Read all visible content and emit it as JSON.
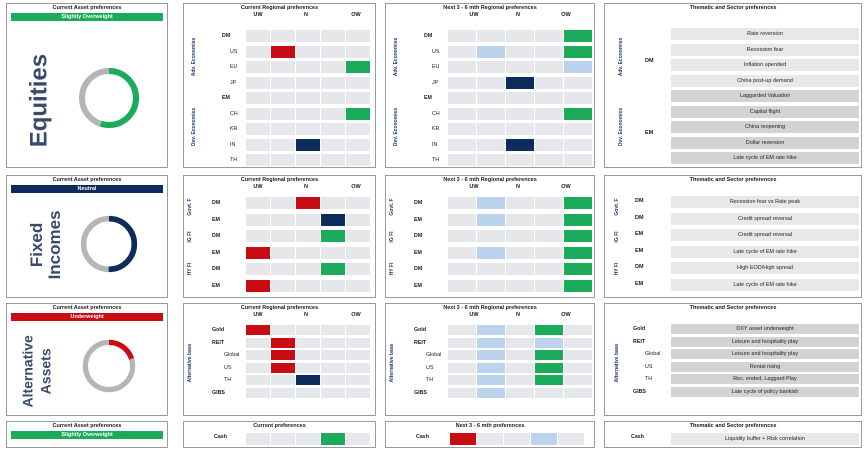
{
  "colors": {
    "ow": "#1bab5b",
    "n": "#0c2d5b",
    "uw": "#c90b14",
    "lb": "#bcd3ee",
    "gray": "#e6e7ea",
    "ringgray": "#b5b5b5"
  },
  "headers": {
    "current": "Current Regional preferences",
    "next": "Next 3 - 6 mth  Regional preferences",
    "next_short": "Next 3 - 6 mth  Regional preferences",
    "thematic": "Thematic and Sector preferences",
    "uw": "UW",
    "n": "N",
    "ow": "OW"
  },
  "equities": {
    "pref_title": "Current Asset preferences",
    "pref_value": "Slightly Overweight",
    "pref_color": "#1bab5b",
    "name": "Equities",
    "ring_fraction": 0.55,
    "ring_color": "#1bab5b",
    "group_labels": [
      "Adv. Economies",
      "Dev. Economies"
    ],
    "rows": [
      {
        "label": "DM",
        "bold": true,
        "cur": "n",
        "next": "ow"
      },
      {
        "label": "US",
        "bold": false,
        "cur": "uw",
        "next": "ow|lbUW"
      },
      {
        "label": "EU",
        "bold": false,
        "cur": "owOW",
        "next": "lbOW|n"
      },
      {
        "label": "JP",
        "bold": false,
        "cur": "n",
        "next": "nUW"
      },
      {
        "label": "EM",
        "bold": true,
        "cur": "n",
        "next": "n"
      },
      {
        "label": "CH",
        "bold": false,
        "cur": "owOW",
        "next": "owOW"
      },
      {
        "label": "KR",
        "bold": false,
        "cur": "n",
        "next": "n"
      },
      {
        "label": "IN",
        "bold": false,
        "cur": "nN",
        "next": "nUW"
      },
      {
        "label": "TH",
        "bold": false,
        "cur": "n",
        "next": "n"
      }
    ],
    "themes_groups": [
      "DM",
      "EM"
    ],
    "themes": [
      {
        "text": "Rate reversion",
        "dark": false
      },
      {
        "text": "Recession fear",
        "dark": false
      },
      {
        "text": "Inflation upended",
        "dark": false
      },
      {
        "text": "China post-up demand",
        "dark": false
      },
      {
        "text": "Laggarded Valuation",
        "dark": true
      },
      {
        "text": "Capital flight",
        "dark": true
      },
      {
        "text": "China reopening",
        "dark": true
      },
      {
        "text": "Dollar reversion",
        "dark": true
      },
      {
        "text": "Late cycle of EM rate hike",
        "dark": true
      }
    ]
  },
  "fixed": {
    "pref_title": "Current Asset preferences",
    "pref_value": "Neutral",
    "pref_color": "#0c2d5b",
    "name_1": "Fixed",
    "name_2": "Incomes",
    "ring_fraction": 0.5,
    "ring_color": "#0c2d5b",
    "group_labels": [
      "Govt. F",
      "IG FI",
      "HY FI"
    ],
    "rows": [
      {
        "label": "DM",
        "bold": true,
        "cur": "uwN"
      },
      {
        "label": "EM",
        "bold": true,
        "cur": "nN2"
      },
      {
        "label": "DM",
        "bold": true,
        "cur": "owX"
      },
      {
        "label": "EM",
        "bold": true,
        "cur": "uwUW"
      },
      {
        "label": "DM",
        "bold": true,
        "cur": "owX"
      },
      {
        "label": "EM",
        "bold": true,
        "cur": "uwUW"
      }
    ],
    "themes": [
      {
        "group": "DM",
        "text": "Recession fear vs Rate peak"
      },
      {
        "group": "DM",
        "text": "Credit spread reversal"
      },
      {
        "group": "EM",
        "text": "Credit spread reversal"
      },
      {
        "group": "EM",
        "text": "Late cycle of EM rate hike"
      },
      {
        "group": "DM",
        "text": "High EOD/High spread"
      },
      {
        "group": "EM",
        "text": "Late cycle of EM rate hike"
      }
    ]
  },
  "alt": {
    "pref_title": "Current Asset preferences",
    "pref_value": "Underweight",
    "pref_color": "#c90b14",
    "name_1": "Alternative",
    "name_2": "Assets",
    "ring_fraction": 0.2,
    "ring_color": "#c90b14",
    "group_label": "Alternative base",
    "rows": [
      {
        "label": "Gold",
        "bold": true
      },
      {
        "label": "REIT",
        "bold": true
      },
      {
        "label": "Global",
        "bold": false
      },
      {
        "label": "US",
        "bold": false
      },
      {
        "label": "TH",
        "bold": false
      },
      {
        "label": "GIBS",
        "bold": true
      }
    ],
    "themes": [
      "DXY asset underweight",
      "Leisure and hospitality play",
      "Leisure and hospitality play",
      "Rental rising",
      "Rec. ended, Laggard Play",
      "Late cycle of policy bankish"
    ]
  },
  "cash": {
    "pref_title": "Current Asset preferences",
    "pref_value": "Slightly Overweight",
    "pref_color": "#1bab5b",
    "cur_title": "Current preferences",
    "next_title": "Next 3 - 6 mth preferences",
    "label": "Cash",
    "theme": "Liquidity buffer + Risk correlation"
  }
}
